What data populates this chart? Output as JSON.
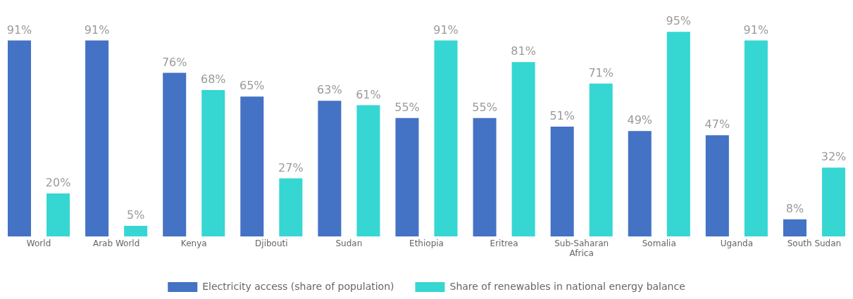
{
  "chart_data": {
    "type": "bar",
    "categories": [
      "World",
      "Arab World",
      "Kenya",
      "Djibouti",
      "Sudan",
      "Ethiopia",
      "Eritrea",
      "Sub-Saharan Africa",
      "Somalia",
      "Uganda",
      "South Sudan"
    ],
    "series": [
      {
        "name": "Electricity access (share of population)",
        "color": "#4472c4",
        "values": [
          91,
          91,
          76,
          65,
          63,
          55,
          55,
          51,
          49,
          47,
          8
        ],
        "value_labels": [
          "91%",
          "91%",
          "76%",
          "65%",
          "63%",
          "55%",
          "55%",
          "51%",
          "49%",
          "47%",
          "8%"
        ]
      },
      {
        "name": "Share of renewables in national energy balance",
        "color": "#36d6d3",
        "values": [
          20,
          5,
          68,
          27,
          61,
          91,
          81,
          71,
          95,
          91,
          32
        ],
        "value_labels": [
          "20%",
          "5%",
          "68%",
          "27%",
          "61%",
          "91%",
          "81%",
          "71%",
          "95%",
          "91%",
          "32%"
        ]
      }
    ],
    "legend": "bottom",
    "grid": false
  }
}
